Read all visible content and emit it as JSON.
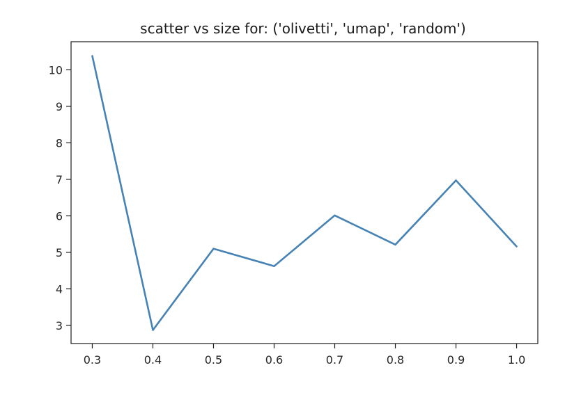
{
  "chart_data": {
    "type": "line",
    "title": "scatter vs size for: ('olivetti', 'umap', 'random')",
    "xlabel": "",
    "ylabel": "",
    "x": [
      0.3,
      0.4,
      0.5,
      0.6,
      0.7,
      0.8,
      0.9,
      1.0
    ],
    "series": [
      {
        "values": [
          10.38,
          2.87,
          5.1,
          4.62,
          6.01,
          5.21,
          6.97,
          5.16
        ],
        "color": "#4682b4"
      }
    ],
    "xlim": [
      0.265,
      1.035
    ],
    "ylim": [
      2.5,
      10.77
    ],
    "xticks": [
      0.3,
      0.4,
      0.5,
      0.6,
      0.7,
      0.8,
      0.9,
      1.0
    ],
    "xtick_labels": [
      "0.3",
      "0.4",
      "0.5",
      "0.6",
      "0.7",
      "0.8",
      "0.9",
      "1.0"
    ],
    "yticks": [
      3,
      4,
      5,
      6,
      7,
      8,
      9,
      10
    ],
    "ytick_labels": [
      "3",
      "4",
      "5",
      "6",
      "7",
      "8",
      "9",
      "10"
    ],
    "grid": false,
    "legend": "none"
  }
}
